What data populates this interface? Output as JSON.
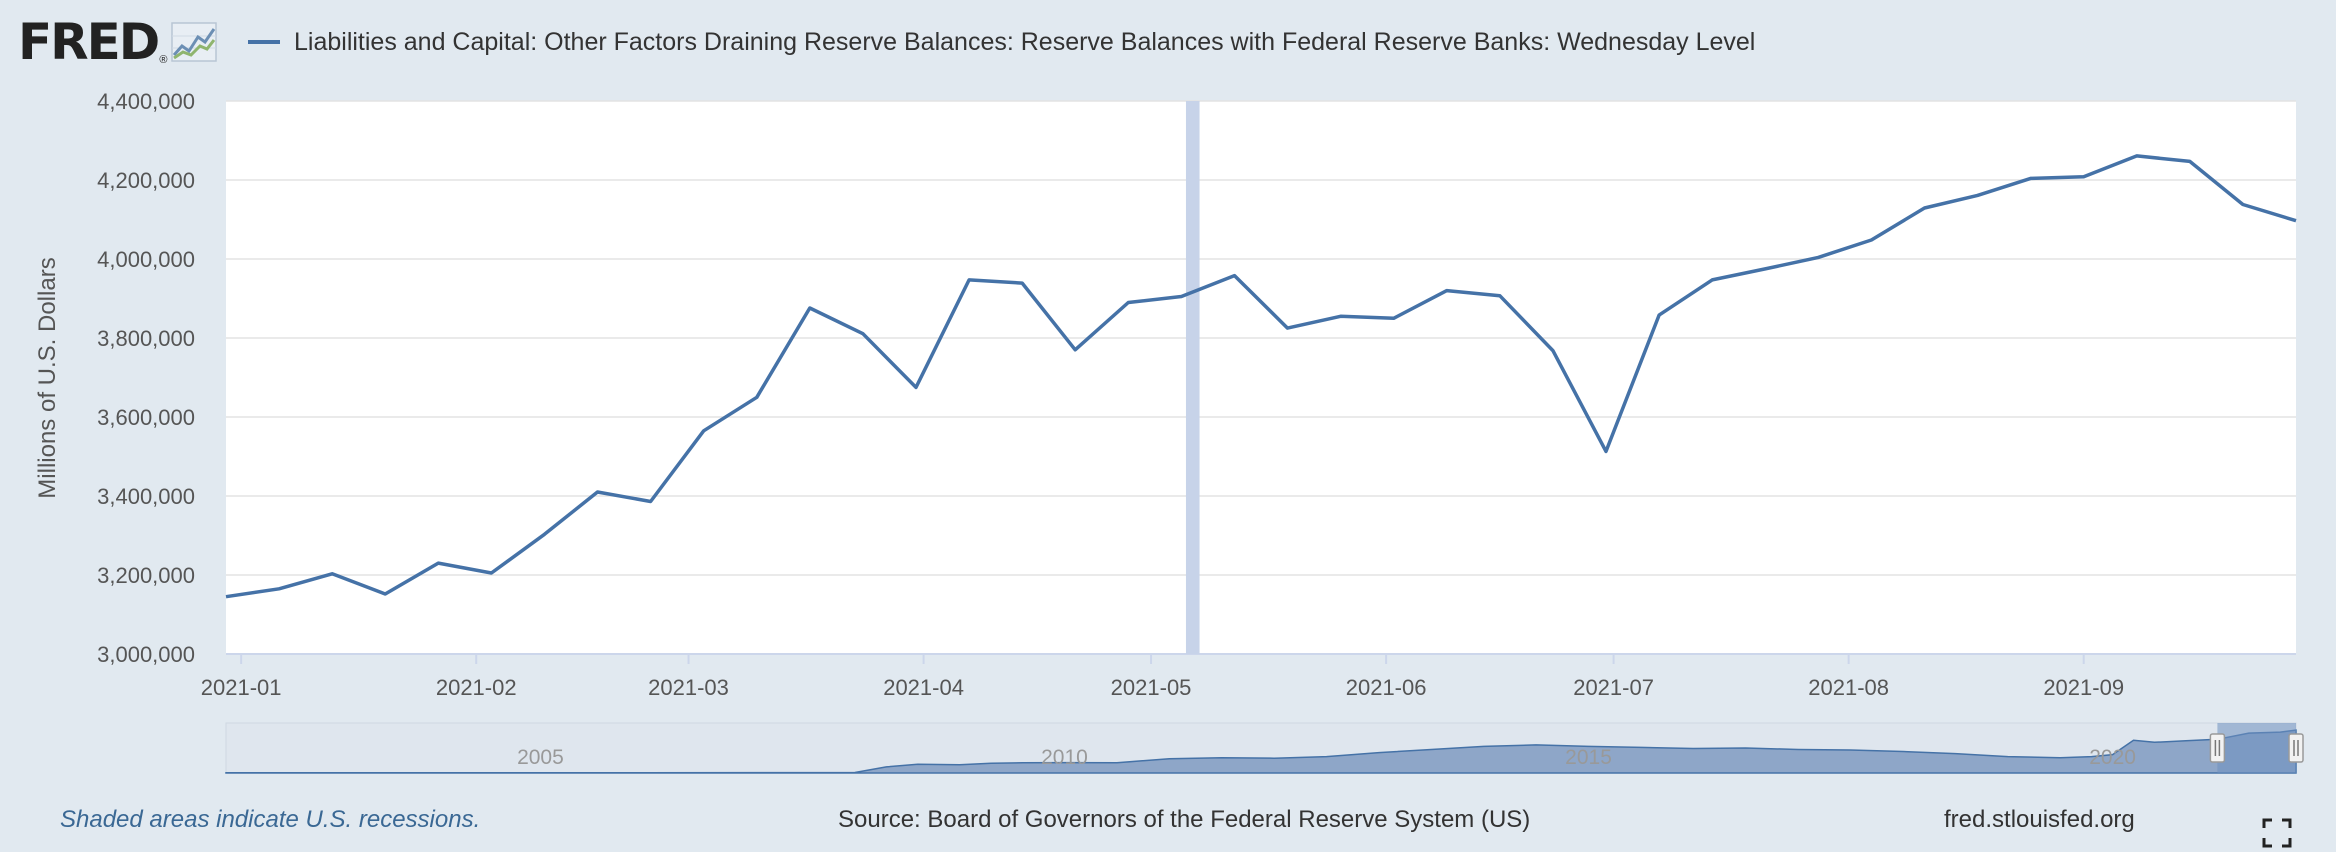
{
  "header": {
    "logo_text": "FRED",
    "title": "Liabilities and Capital: Other Factors Draining Reserve Balances: Reserve Balances with Federal Reserve Banks: Wednesday Level"
  },
  "footer": {
    "recession_note": "Shaded areas indicate U.S. recessions.",
    "source": "Source: Board of Governors of the Federal Reserve System (US)",
    "url": "fred.stlouisfed.org"
  },
  "colors": {
    "line": "#4572a7",
    "recession": "#c7d3e9",
    "navigator_fill": "#8ea6c8",
    "navigator_selection": "#6d8fbf"
  },
  "icons": [
    "fred-graph-icon",
    "fullscreen-icon"
  ],
  "chart_data": {
    "type": "line",
    "ylabel": "Millions of U.S. Dollars",
    "ylim": [
      3000000,
      4400000
    ],
    "yticks": [
      3000000,
      3200000,
      3400000,
      3600000,
      3800000,
      4000000,
      4200000,
      4400000
    ],
    "ytick_labels": [
      "3,000,000",
      "3,200,000",
      "3,400,000",
      "3,600,000",
      "3,800,000",
      "4,000,000",
      "4,200,000",
      "4,400,000"
    ],
    "xlim": [
      "2020-12-30",
      "2021-09-29"
    ],
    "xticks": [
      "2021-01-01",
      "2021-02-01",
      "2021-03-01",
      "2021-04-01",
      "2021-05-01",
      "2021-06-01",
      "2021-07-01",
      "2021-08-01",
      "2021-09-01"
    ],
    "xtick_labels": [
      "2021-01",
      "2021-02",
      "2021-03",
      "2021-04",
      "2021-05",
      "2021-06",
      "2021-07",
      "2021-08",
      "2021-09"
    ],
    "grid": true,
    "recession_band": {
      "start": "2021-05-06",
      "end": "2021-05-07"
    },
    "series": [
      {
        "x": [
          "2020-12-30",
          "2021-01-06",
          "2021-01-13",
          "2021-01-20",
          "2021-01-27",
          "2021-02-03",
          "2021-02-10",
          "2021-02-17",
          "2021-02-24",
          "2021-03-03",
          "2021-03-10",
          "2021-03-17",
          "2021-03-24",
          "2021-03-31",
          "2021-04-07",
          "2021-04-14",
          "2021-04-21",
          "2021-04-28",
          "2021-05-05",
          "2021-05-12",
          "2021-05-19",
          "2021-05-26",
          "2021-06-02",
          "2021-06-09",
          "2021-06-16",
          "2021-06-23",
          "2021-06-30",
          "2021-07-07",
          "2021-07-14",
          "2021-07-21",
          "2021-07-28",
          "2021-08-04",
          "2021-08-11",
          "2021-08-18",
          "2021-08-25",
          "2021-09-01",
          "2021-09-08",
          "2021-09-15",
          "2021-09-22",
          "2021-09-29"
        ],
        "values": [
          3145000,
          3165000,
          3203000,
          3152000,
          3230000,
          3205000,
          3303000,
          3410000,
          3386000,
          3565000,
          3650000,
          3876000,
          3811000,
          3675000,
          3947000,
          3939000,
          3770000,
          3890000,
          3905000,
          3958000,
          3825000,
          3855000,
          3850000,
          3920000,
          3907000,
          3768000,
          3513000,
          3858000,
          3947000,
          3975000,
          4004000,
          4048000,
          4129000,
          4161000,
          4204000,
          4208000,
          4261000,
          4247000,
          4138000,
          4097000
        ]
      }
    ],
    "navigator": {
      "x_labels": [
        "2005",
        "2010",
        "2015",
        "2020"
      ],
      "x_label_positions": [
        2005.0,
        2010.0,
        2015.0,
        2020.0
      ],
      "xlim": [
        2002.0,
        2021.75
      ],
      "selection": [
        2021.0,
        2021.75
      ],
      "series_years": [
        2002.0,
        2006.0,
        2008.0,
        2008.3,
        2008.6,
        2009.0,
        2009.3,
        2009.6,
        2010.0,
        2010.5,
        2011.0,
        2011.5,
        2012.0,
        2012.5,
        2013.0,
        2013.5,
        2014.0,
        2014.5,
        2015.0,
        2015.5,
        2016.0,
        2016.5,
        2017.0,
        2017.5,
        2018.0,
        2018.5,
        2019.0,
        2019.5,
        2019.8,
        2020.0,
        2020.2,
        2020.4,
        2020.7,
        2021.0,
        2021.3,
        2021.6,
        2021.75
      ],
      "series_values": [
        0.02,
        0.02,
        0.05,
        0.6,
        0.85,
        0.8,
        0.95,
        1.0,
        1.02,
        1.0,
        1.4,
        1.5,
        1.45,
        1.6,
        2.0,
        2.3,
        2.6,
        2.75,
        2.6,
        2.5,
        2.4,
        2.45,
        2.3,
        2.25,
        2.1,
        1.9,
        1.6,
        1.5,
        1.6,
        1.8,
        3.2,
        3.0,
        3.15,
        3.3,
        3.9,
        4.0,
        4.2
      ]
    }
  }
}
